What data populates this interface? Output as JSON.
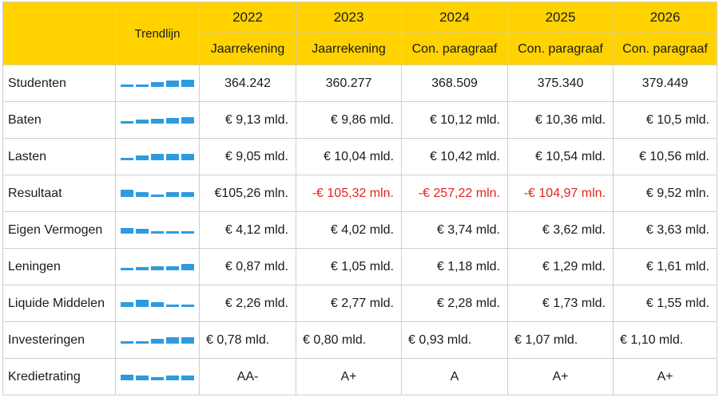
{
  "header": {
    "trend_label": "Trendlijn",
    "years": [
      "2022",
      "2023",
      "2024",
      "2025",
      "2026"
    ],
    "types": [
      "Jaarrekening",
      "Jaarrekening",
      "Con. paragraaf",
      "Con. paragraaf",
      "Con. paragraaf"
    ]
  },
  "rows": [
    {
      "label": "Studenten",
      "values": [
        "364.242",
        "360.277",
        "368.509",
        "375.340",
        "379.449"
      ],
      "trend": [
        0.1,
        0.1,
        0.45,
        0.75,
        0.85
      ]
    },
    {
      "label": "Baten",
      "values": [
        "€ 9,13 mld.",
        "€ 9,86 mld.",
        "€ 10,12 mld.",
        "€ 10,36 mld.",
        "€ 10,5 mld."
      ],
      "trend": [
        0.1,
        0.35,
        0.55,
        0.6,
        0.7
      ]
    },
    {
      "label": "Lasten",
      "values": [
        "€ 9,05 mld.",
        "€ 10,04 mld.",
        "€ 10,42 mld.",
        "€ 10,54 mld.",
        "€ 10,56 mld."
      ],
      "trend": [
        0.1,
        0.55,
        0.7,
        0.75,
        0.75
      ]
    },
    {
      "label": "Resultaat",
      "values": [
        "€105,26 mln.",
        "-€ 105,32 mln.",
        "-€ 257,22 mln.",
        "-€ 104,97 mln.",
        "€ 9,52 mln."
      ],
      "trend": [
        0.85,
        0.5,
        0.1,
        0.5,
        0.55
      ],
      "negative": [
        false,
        true,
        true,
        true,
        false
      ]
    },
    {
      "label": "Eigen Vermogen",
      "values": [
        "€ 4,12 mld.",
        "€ 4,02 mld.",
        "€ 3,74 mld.",
        "€ 3,62 mld.",
        "€ 3,63 mld."
      ],
      "trend": [
        0.6,
        0.5,
        0.1,
        0.1,
        0.1
      ]
    },
    {
      "label": "Leningen",
      "values": [
        "€ 0,87 mld.",
        "€ 1,05 mld.",
        "€ 1,18 mld.",
        "€ 1,29 mld.",
        "€ 1,61 mld."
      ],
      "trend": [
        0.15,
        0.25,
        0.35,
        0.4,
        0.8
      ]
    },
    {
      "label": "Liquide Middelen",
      "values": [
        "€ 2,26 mld.",
        "€ 2,77 mld.",
        "€ 2,28 mld.",
        "€ 1,73 mld.",
        "€ 1,55 mld."
      ],
      "trend": [
        0.5,
        0.85,
        0.5,
        0.1,
        0.1
      ]
    },
    {
      "label": "Investeringen",
      "values": [
        "€ 0,78 mld.",
        "€ 0,80 mld.",
        "€ 0,93 mld.",
        "€ 1,07 mld.",
        "€ 1,10 mld."
      ],
      "trend": [
        0.1,
        0.1,
        0.45,
        0.7,
        0.75
      ],
      "align": "left"
    },
    {
      "label": "Kredietrating",
      "values": [
        "AA-",
        "A+",
        "A",
        "A+",
        "A+"
      ],
      "trend": [
        0.6,
        0.45,
        0.3,
        0.45,
        0.45
      ],
      "align": "center"
    }
  ],
  "colors": {
    "header_bg": "#ffd200",
    "trend_bar": "#2e9be0",
    "negative_text": "#e1251b",
    "grid": "#cfcfcf"
  }
}
